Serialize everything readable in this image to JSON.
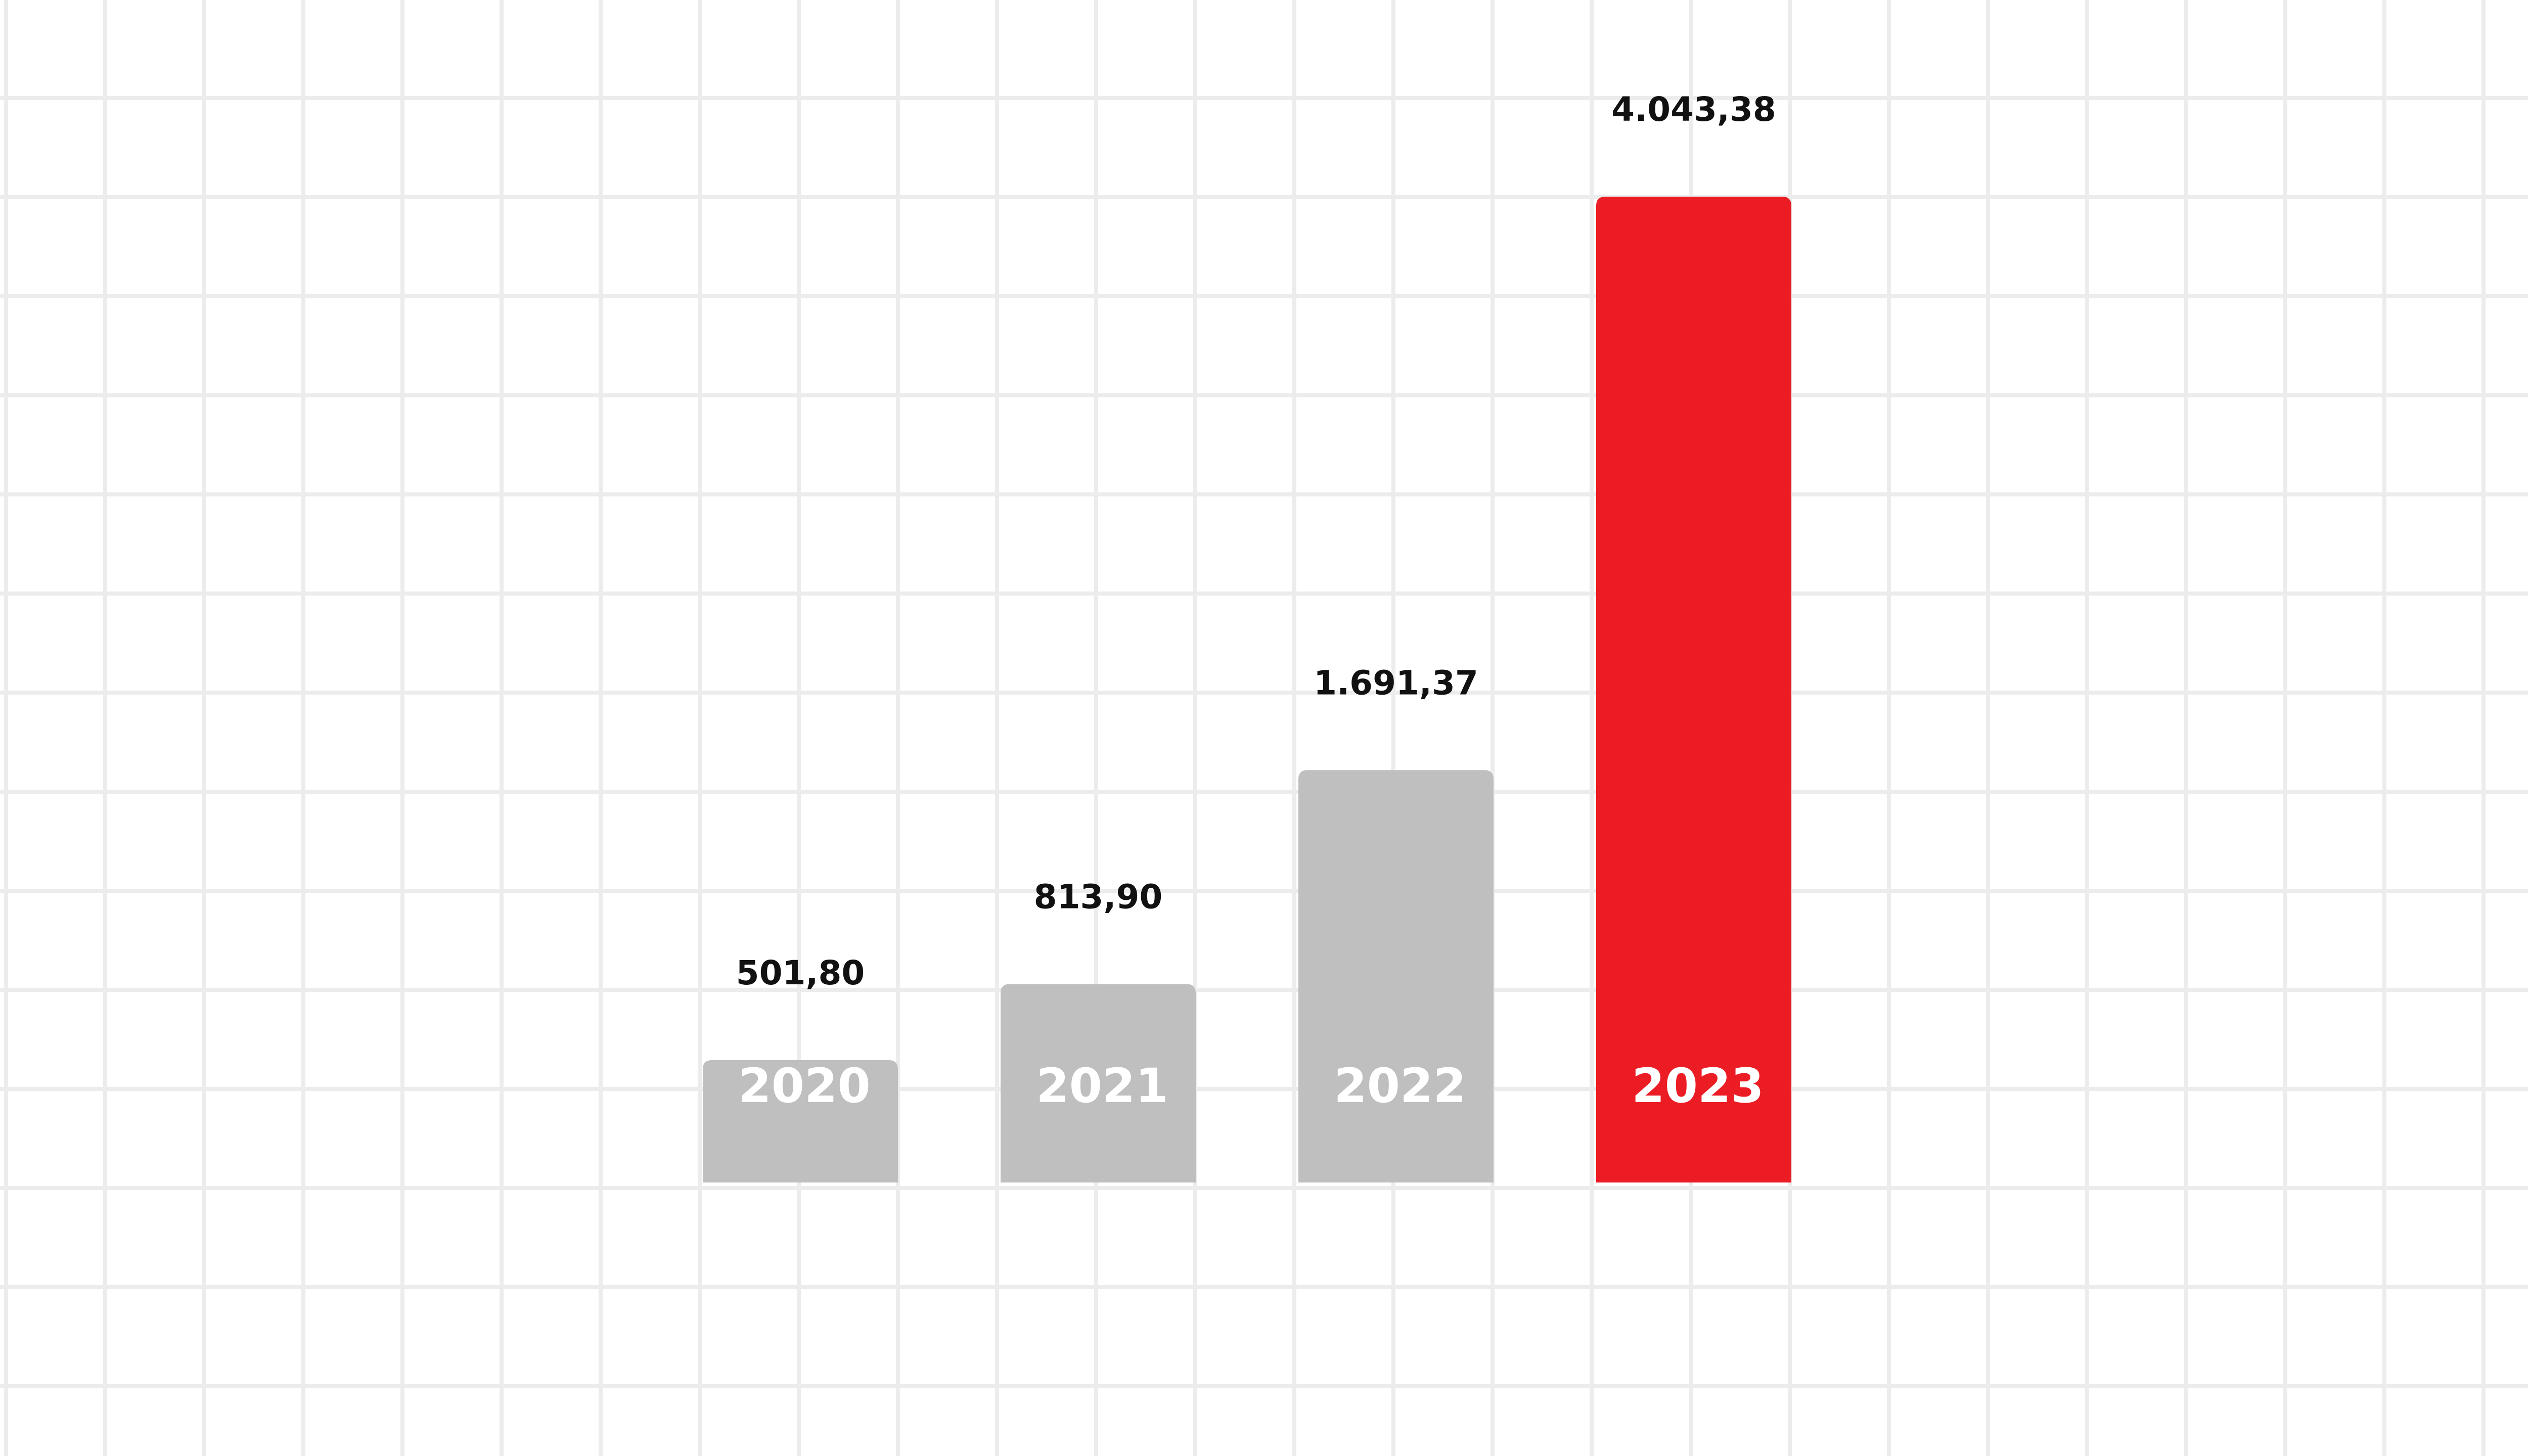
{
  "chart_data": {
    "type": "bar",
    "categories": [
      "2020",
      "2021",
      "2022",
      "2023"
    ],
    "values": [
      501.8,
      813.9,
      1691.37,
      4043.38
    ],
    "value_labels": [
      "501,80",
      "813,90",
      "1.691,37",
      "4.043,38"
    ],
    "highlight_index": 3,
    "ylim": [
      0,
      4043.38
    ],
    "grid": true,
    "colors": {
      "bar": "#bfbfbf",
      "highlight": "#ec1c24",
      "grid": "#ececec",
      "value_label": "#111111",
      "category_label": "#ffffff"
    }
  }
}
